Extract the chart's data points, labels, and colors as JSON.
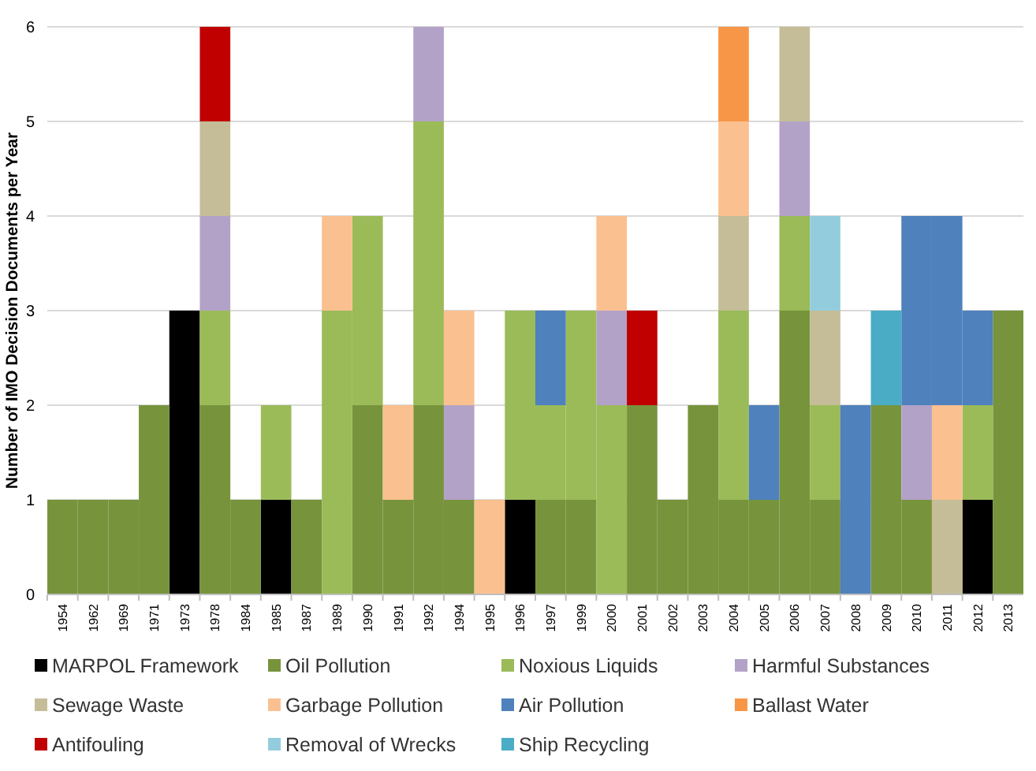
{
  "chart_data": {
    "type": "bar",
    "stacked": true,
    "ylabel": "Number of IMO Decision Documents per Year",
    "categories": [
      "1954",
      "1962",
      "1969",
      "1971",
      "1973",
      "1978",
      "1984",
      "1985",
      "1987",
      "1989",
      "1990",
      "1991",
      "1992",
      "1994",
      "1995",
      "1996",
      "1997",
      "1999",
      "2000",
      "2001",
      "2002",
      "2003",
      "2004",
      "2005",
      "2006",
      "2007",
      "2008",
      "2009",
      "2010",
      "2011",
      "2012",
      "2013"
    ],
    "series": [
      {
        "name": "MARPOL Framework",
        "color": "#000000",
        "values": [
          0,
          0,
          0,
          0,
          3,
          0,
          0,
          1,
          0,
          0,
          0,
          0,
          0,
          0,
          0,
          1,
          0,
          0,
          0,
          0,
          0,
          0,
          0,
          0,
          0,
          0,
          0,
          0,
          0,
          0,
          1,
          0
        ]
      },
      {
        "name": "Oil Pollution",
        "color": "#77933c",
        "values": [
          1,
          1,
          1,
          2,
          0,
          2,
          1,
          0,
          1,
          0,
          2,
          1,
          2,
          1,
          0,
          0,
          1,
          1,
          0,
          2,
          1,
          2,
          1,
          1,
          3,
          1,
          0,
          2,
          1,
          0,
          0,
          3
        ]
      },
      {
        "name": "Noxious Liquids",
        "color": "#9bbb59",
        "values": [
          0,
          0,
          0,
          0,
          0,
          1,
          0,
          1,
          0,
          3,
          2,
          0,
          3,
          0,
          0,
          2,
          1,
          2,
          2,
          0,
          0,
          0,
          2,
          0,
          1,
          1,
          0,
          0,
          0,
          0,
          1,
          0
        ]
      },
      {
        "name": "Harmful Substances",
        "color": "#b3a2c7",
        "values": [
          0,
          0,
          0,
          0,
          0,
          1,
          0,
          0,
          0,
          0,
          0,
          0,
          1,
          1,
          0,
          0,
          0,
          0,
          1,
          0,
          0,
          0,
          0,
          0,
          1,
          0,
          0,
          0,
          1,
          0,
          0,
          0
        ]
      },
      {
        "name": "Sewage Waste",
        "color": "#c4bd97",
        "values": [
          0,
          0,
          0,
          0,
          0,
          1,
          0,
          0,
          0,
          0,
          0,
          0,
          0,
          0,
          0,
          0,
          0,
          0,
          0,
          0,
          0,
          0,
          1,
          0,
          1,
          1,
          0,
          0,
          0,
          1,
          0,
          0
        ]
      },
      {
        "name": "Garbage Pollution",
        "color": "#fac090",
        "values": [
          0,
          0,
          0,
          0,
          0,
          0,
          0,
          0,
          0,
          1,
          0,
          1,
          0,
          1,
          1,
          0,
          0,
          0,
          1,
          0,
          0,
          0,
          1,
          0,
          0,
          0,
          0,
          0,
          0,
          1,
          0,
          0
        ]
      },
      {
        "name": "Air Pollution",
        "color": "#4f81bd",
        "values": [
          0,
          0,
          0,
          0,
          0,
          0,
          0,
          0,
          0,
          0,
          0,
          0,
          0,
          0,
          0,
          0,
          1,
          0,
          0,
          0,
          0,
          0,
          0,
          1,
          0,
          0,
          2,
          0,
          2,
          2,
          1,
          0
        ]
      },
      {
        "name": "Ballast Water",
        "color": "#f79646",
        "values": [
          0,
          0,
          0,
          0,
          0,
          0,
          0,
          0,
          0,
          0,
          0,
          0,
          0,
          0,
          0,
          0,
          0,
          0,
          0,
          0,
          0,
          0,
          1,
          0,
          0,
          0,
          0,
          0,
          0,
          0,
          0,
          0
        ]
      },
      {
        "name": "Antifouling",
        "color": "#c00000",
        "values": [
          0,
          0,
          0,
          0,
          0,
          1,
          0,
          0,
          0,
          0,
          0,
          0,
          0,
          0,
          0,
          0,
          0,
          0,
          0,
          1,
          0,
          0,
          0,
          0,
          0,
          0,
          0,
          0,
          0,
          0,
          0,
          0
        ]
      },
      {
        "name": "Removal of Wrecks",
        "color": "#93cddd",
        "values": [
          0,
          0,
          0,
          0,
          0,
          0,
          0,
          0,
          0,
          0,
          0,
          0,
          0,
          0,
          0,
          0,
          0,
          0,
          0,
          0,
          0,
          0,
          0,
          0,
          0,
          1,
          0,
          0,
          0,
          0,
          0,
          0
        ]
      },
      {
        "name": "Ship Recycling",
        "color": "#4bacc6",
        "values": [
          0,
          0,
          0,
          0,
          0,
          0,
          0,
          0,
          0,
          0,
          0,
          0,
          0,
          0,
          0,
          0,
          0,
          0,
          0,
          0,
          0,
          0,
          0,
          0,
          0,
          0,
          0,
          1,
          0,
          0,
          0,
          0
        ]
      }
    ],
    "ylim": [
      0,
      6
    ],
    "yticks": [
      0,
      1,
      2,
      3,
      4,
      5,
      6
    ],
    "grid": "y",
    "legend": "bottom"
  }
}
